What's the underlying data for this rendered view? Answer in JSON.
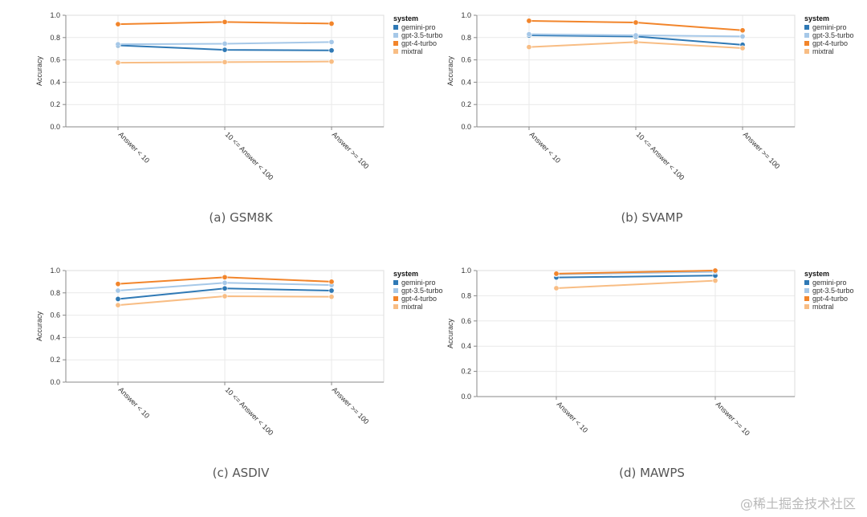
{
  "colors": {
    "gemini-pro": "#2f79b5",
    "gpt-3.5-turbo": "#a6c8e8",
    "gpt-4-turbo": "#f2852b",
    "mixtral": "#f8bd84",
    "grid": "#e9e9e9",
    "axis": "#888888"
  },
  "watermark": "@稀土掘金技术社区",
  "chart_data": [
    {
      "type": "line",
      "caption": "(a) GSM8K",
      "ylabel": "Accuracy",
      "ylim": [
        0,
        1
      ],
      "yticks": [
        "0.0",
        "0.2",
        "0.4",
        "0.6",
        "0.8",
        "1.0"
      ],
      "categories": [
        "Answer < 10",
        "10 <= Answer < 100",
        "Answer >= 100"
      ],
      "legend_title": "system",
      "legend_position": "right",
      "grid": true,
      "series": [
        {
          "name": "gemini-pro",
          "values": [
            0.73,
            0.69,
            0.685
          ]
        },
        {
          "name": "gpt-3.5-turbo",
          "values": [
            0.74,
            0.745,
            0.76
          ]
        },
        {
          "name": "gpt-4-turbo",
          "values": [
            0.92,
            0.94,
            0.925
          ]
        },
        {
          "name": "mixtral",
          "values": [
            0.575,
            0.58,
            0.585
          ]
        }
      ]
    },
    {
      "type": "line",
      "caption": "(b) SVAMP",
      "ylabel": "Accuracy",
      "ylim": [
        0,
        1
      ],
      "yticks": [
        "0.0",
        "0.2",
        "0.4",
        "0.6",
        "0.8",
        "1.0"
      ],
      "categories": [
        "Answer < 10",
        "10 <= Answer < 100",
        "Answer >= 100"
      ],
      "legend_title": "system",
      "legend_position": "right",
      "grid": true,
      "series": [
        {
          "name": "gemini-pro",
          "values": [
            0.82,
            0.81,
            0.735
          ]
        },
        {
          "name": "gpt-3.5-turbo",
          "values": [
            0.83,
            0.82,
            0.81
          ]
        },
        {
          "name": "gpt-4-turbo",
          "values": [
            0.95,
            0.935,
            0.865
          ]
        },
        {
          "name": "mixtral",
          "values": [
            0.715,
            0.76,
            0.705
          ]
        }
      ]
    },
    {
      "type": "line",
      "caption": "(c) ASDIV",
      "ylabel": "Accuracy",
      "ylim": [
        0,
        1
      ],
      "yticks": [
        "0.0",
        "0.2",
        "0.4",
        "0.6",
        "0.8",
        "1.0"
      ],
      "categories": [
        "Answer < 10",
        "10 <= Answer < 100",
        "Answer >= 100"
      ],
      "legend_title": "system",
      "legend_position": "right",
      "grid": true,
      "series": [
        {
          "name": "gemini-pro",
          "values": [
            0.745,
            0.84,
            0.82
          ]
        },
        {
          "name": "gpt-3.5-turbo",
          "values": [
            0.82,
            0.89,
            0.87
          ]
        },
        {
          "name": "gpt-4-turbo",
          "values": [
            0.88,
            0.94,
            0.9
          ]
        },
        {
          "name": "mixtral",
          "values": [
            0.69,
            0.77,
            0.765
          ]
        }
      ]
    },
    {
      "type": "line",
      "caption": "(d) MAWPS",
      "ylabel": "Accuracy",
      "ylim": [
        0,
        1
      ],
      "yticks": [
        "0.0",
        "0.2",
        "0.4",
        "0.6",
        "0.8",
        "1.0"
      ],
      "categories": [
        "Answer < 10",
        "Answer >= 10"
      ],
      "legend_title": "system",
      "legend_position": "right",
      "grid": true,
      "series": [
        {
          "name": "gemini-pro",
          "values": [
            0.945,
            0.96
          ]
        },
        {
          "name": "gpt-3.5-turbo",
          "values": [
            0.97,
            0.99
          ]
        },
        {
          "name": "gpt-4-turbo",
          "values": [
            0.975,
            1.0
          ]
        },
        {
          "name": "mixtral",
          "values": [
            0.86,
            0.92
          ]
        }
      ]
    }
  ]
}
